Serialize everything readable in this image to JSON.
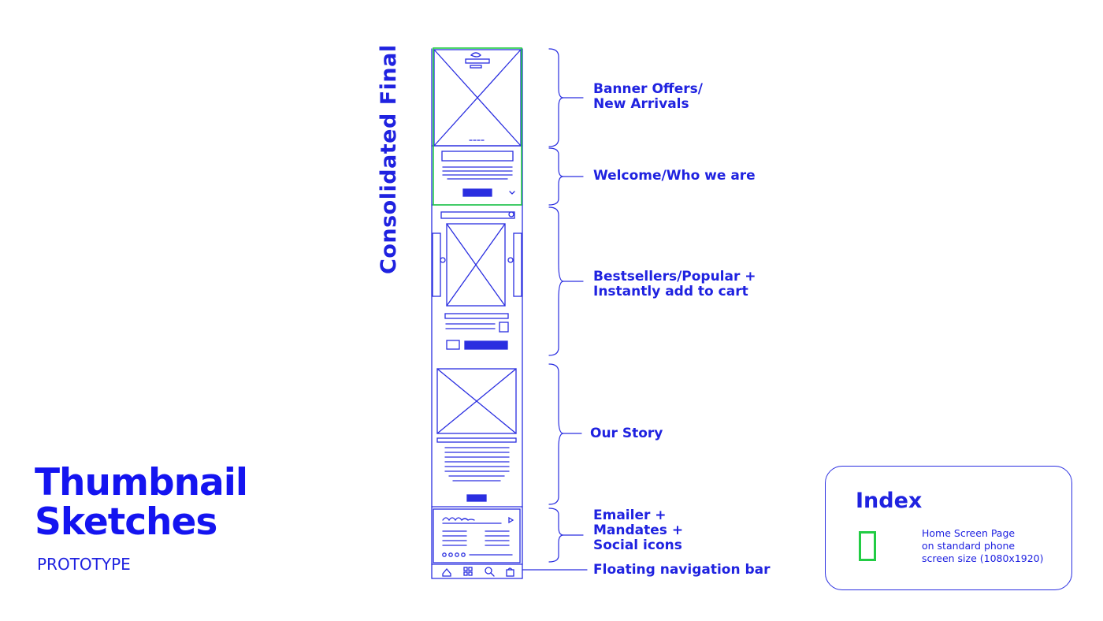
{
  "title": {
    "line1": "Thumbnail",
    "line2": "Sketches"
  },
  "subtitle": "PROTOTYPE",
  "vertical_label": "Consolidated Final",
  "sections": [
    {
      "id": "banner",
      "label": "Banner Offers/\nNew Arrivals"
    },
    {
      "id": "welcome",
      "label": "Welcome/Who we are"
    },
    {
      "id": "bestsellers",
      "label": "Bestsellers/Popular +\nInstantly add to cart"
    },
    {
      "id": "story",
      "label": "Our Story"
    },
    {
      "id": "emailer",
      "label": "Emailer +\nMandates +\nSocial icons"
    },
    {
      "id": "navbar",
      "label": "Floating navigation bar"
    }
  ],
  "index": {
    "title": "Index",
    "description": "Home Screen Page\non standard phone\nscreen size (1080x1920)",
    "swatch_color": "#22cc44"
  },
  "colors": {
    "ink": "#1f22e0",
    "accent_green": "#22cc44"
  },
  "icons": [
    "home-icon",
    "grid-icon",
    "search-icon",
    "cart-icon",
    "chevron-down-icon",
    "play-icon"
  ]
}
